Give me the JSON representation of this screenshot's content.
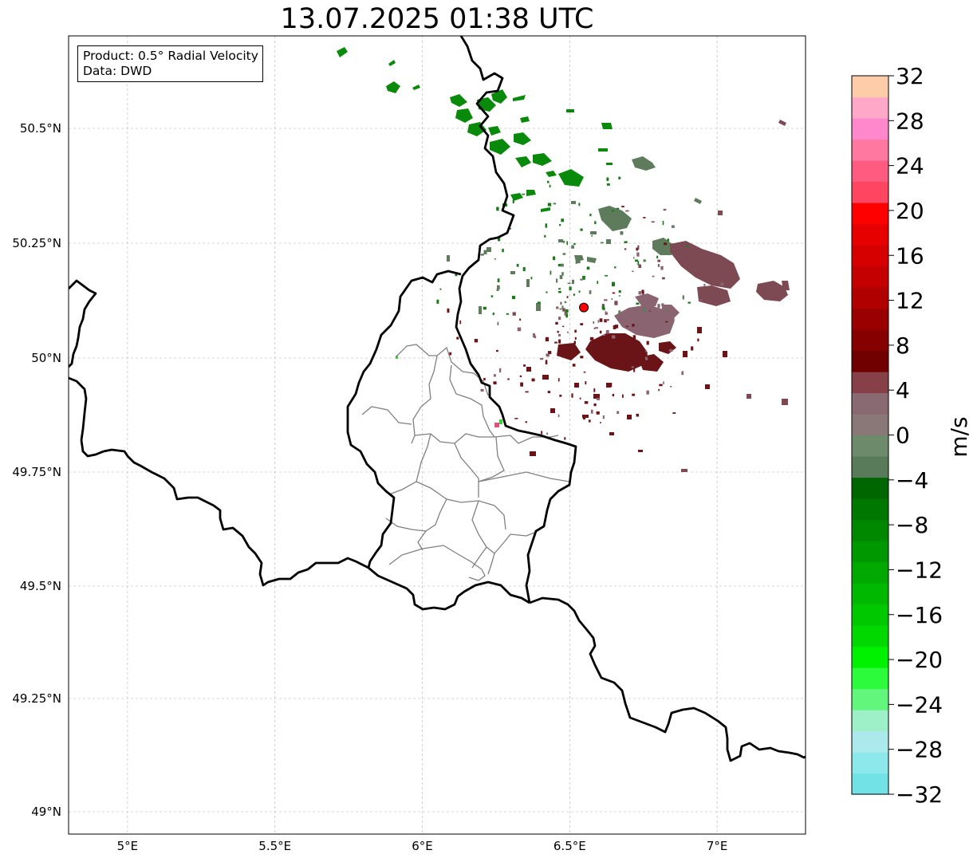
{
  "title": "13.07.2025 01:38 UTC",
  "info": {
    "product": "Product: 0.5° Radial Velocity",
    "source": "Data: DWD"
  },
  "map": {
    "extent": {
      "lon_min": 4.8,
      "lon_max": 7.3,
      "lat_min": 48.95,
      "lat_max": 50.7
    },
    "lon_ticks": [
      {
        "value": 5.0,
        "label": "5°E"
      },
      {
        "value": 5.5,
        "label": "5.5°E"
      },
      {
        "value": 6.0,
        "label": "6°E"
      },
      {
        "value": 6.5,
        "label": "6.5°E"
      },
      {
        "value": 7.0,
        "label": "7°E"
      }
    ],
    "lat_ticks": [
      {
        "value": 50.5,
        "label": "50.5°N"
      },
      {
        "value": 50.25,
        "label": "50.25°N"
      },
      {
        "value": 50.0,
        "label": "50°N"
      },
      {
        "value": 49.75,
        "label": "49.75°N"
      },
      {
        "value": 49.5,
        "label": "49.5°N"
      },
      {
        "value": 49.25,
        "label": "49.25°N"
      },
      {
        "value": 49.0,
        "label": "49°N"
      }
    ],
    "radar_site": {
      "lon": 6.548,
      "lat": 50.11,
      "color": "#ff0000"
    }
  },
  "colorbar": {
    "label": "m/s",
    "min": -32,
    "max": 32,
    "ticks": [
      "32",
      "28",
      "24",
      "20",
      "16",
      "12",
      "8",
      "4",
      "0",
      "−04",
      "−8",
      "−12",
      "−16",
      "−20",
      "−24",
      "−28",
      "−32"
    ],
    "colors": [
      "#72e2e6",
      "#8ce8ea",
      "#ace9ec",
      "#9ef0c8",
      "#62f77c",
      "#2cfb3c",
      "#00f100",
      "#00d800",
      "#00c800",
      "#00b800",
      "#00a800",
      "#009800",
      "#008800",
      "#007800",
      "#006600",
      "#5a7b5a",
      "#6d8a6b",
      "#8a7878",
      "#8a6a72",
      "#864048",
      "#700000",
      "#860000",
      "#9a0000",
      "#b00000",
      "#c40000",
      "#d60000",
      "#e70000",
      "#ff0000",
      "#ff4560",
      "#ff5a80",
      "#ff78a0",
      "#ff88cc",
      "#ffa8c8",
      "#ffccaa"
    ]
  }
}
